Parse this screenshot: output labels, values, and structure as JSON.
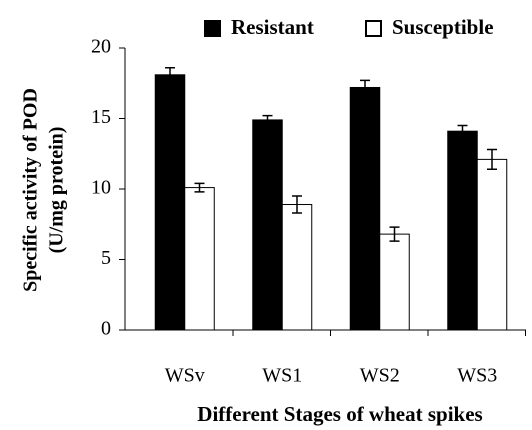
{
  "chart_data": {
    "type": "bar",
    "y_label": [
      "Specific activity of POD",
      "(U/mg protein)"
    ],
    "x_label": "Different Stages of wheat spikes",
    "categories": [
      "WSv",
      "WS1",
      "WS2",
      "WS3"
    ],
    "series": [
      {
        "name": "Resistant",
        "color": "#000000",
        "values": [
          18.1,
          14.9,
          17.2,
          14.1
        ],
        "errors": [
          0.5,
          0.3,
          0.5,
          0.4
        ]
      },
      {
        "name": "Susceptible",
        "color": "#ffffff",
        "values": [
          10.1,
          8.9,
          6.8,
          12.1
        ],
        "errors": [
          0.3,
          0.6,
          0.5,
          0.7
        ]
      }
    ],
    "ylim": [
      0,
      20
    ],
    "yticks": [
      0,
      5,
      10,
      15,
      20
    ],
    "legend": "top"
  }
}
